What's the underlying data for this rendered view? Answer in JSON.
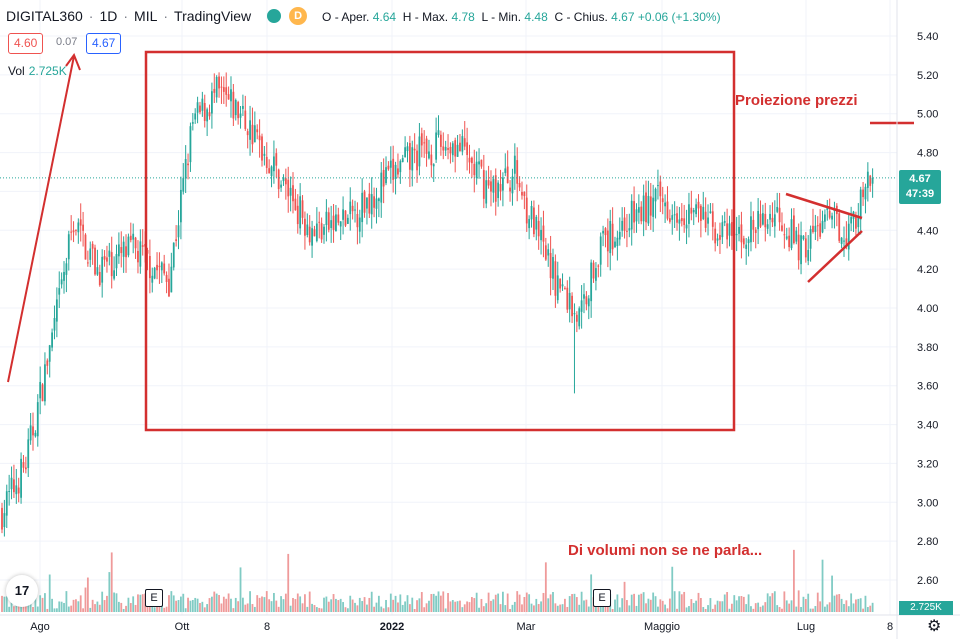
{
  "header": {
    "symbol": "DIGITAL360",
    "interval": "1D",
    "exchange": "MIL",
    "provider": "TradingView",
    "d_badge": "D",
    "ohlc": {
      "o_label": "O",
      "open_label": "- Aper.",
      "open": "4.64",
      "h_label": "H",
      "high_label": "- Max.",
      "high": "4.78",
      "l_label": "L",
      "low_label": "- Min.",
      "low": "4.48",
      "c_label": "C",
      "close_label": "- Chius.",
      "close": "4.67",
      "change": "+0.06 (+1.30%)"
    }
  },
  "quote": {
    "bid": "4.60",
    "spread": "0.07",
    "ask": "4.67"
  },
  "volume": {
    "label": "Vol",
    "value": "2.725K",
    "last_label": "2.725K"
  },
  "last_price": {
    "value": "4.67",
    "countdown": "47:39"
  },
  "annotations": {
    "projection": "Proiezione prezzi",
    "volumes": "Di volumi non se ne parla..."
  },
  "earnings_badge": "E",
  "logo_text": "17",
  "colors": {
    "up": "#26a69a",
    "down": "#ef5350",
    "annotation": "#d32f2f",
    "vol_up": "#80cbc4",
    "vol_down": "#ef9a9a"
  },
  "icons": {
    "logo": "tradingview-logo-icon",
    "settings": "gear-icon"
  },
  "chart_data": {
    "type": "candlestick",
    "y_axis": {
      "ylim": [
        2.5,
        5.45
      ],
      "ticks": [
        "5.40",
        "5.20",
        "5.00",
        "4.80",
        "4.60",
        "4.40",
        "4.20",
        "4.00",
        "3.80",
        "3.60",
        "3.40",
        "3.20",
        "3.00",
        "2.80",
        "2.60"
      ]
    },
    "x_axis": {
      "ticks": [
        "Ago",
        "Ott",
        "8",
        "2022",
        "Mar",
        "Maggio",
        "Lug",
        "8"
      ]
    },
    "last_price_line": 4.67,
    "projection_level": 4.96,
    "range_box": {
      "from": "Ott",
      "to": "Maggio",
      "high": 5.32,
      "low": 3.38
    },
    "candle_anchors": [
      {
        "i": 0,
        "p": 2.95
      },
      {
        "i": 10,
        "p": 3.2
      },
      {
        "i": 22,
        "p": 3.9
      },
      {
        "i": 30,
        "p": 4.45
      },
      {
        "i": 40,
        "p": 4.2
      },
      {
        "i": 55,
        "p": 4.3
      },
      {
        "i": 70,
        "p": 4.15
      },
      {
        "i": 80,
        "p": 4.95
      },
      {
        "i": 90,
        "p": 5.1
      },
      {
        "i": 100,
        "p": 5.0
      },
      {
        "i": 115,
        "p": 4.7
      },
      {
        "i": 130,
        "p": 4.4
      },
      {
        "i": 145,
        "p": 4.45
      },
      {
        "i": 160,
        "p": 4.65
      },
      {
        "i": 175,
        "p": 4.8
      },
      {
        "i": 190,
        "p": 4.85
      },
      {
        "i": 205,
        "p": 4.6
      },
      {
        "i": 215,
        "p": 4.7
      },
      {
        "i": 225,
        "p": 4.35
      },
      {
        "i": 232,
        "p": 4.15
      },
      {
        "i": 242,
        "p": 3.95
      },
      {
        "i": 250,
        "p": 4.3
      },
      {
        "i": 262,
        "p": 4.45
      },
      {
        "i": 275,
        "p": 4.55
      },
      {
        "i": 290,
        "p": 4.5
      },
      {
        "i": 305,
        "p": 4.35
      },
      {
        "i": 315,
        "p": 4.4
      },
      {
        "i": 325,
        "p": 4.5
      },
      {
        "i": 335,
        "p": 4.3
      },
      {
        "i": 345,
        "p": 4.45
      },
      {
        "i": 355,
        "p": 4.4
      },
      {
        "i": 365,
        "p": 4.67
      }
    ]
  }
}
